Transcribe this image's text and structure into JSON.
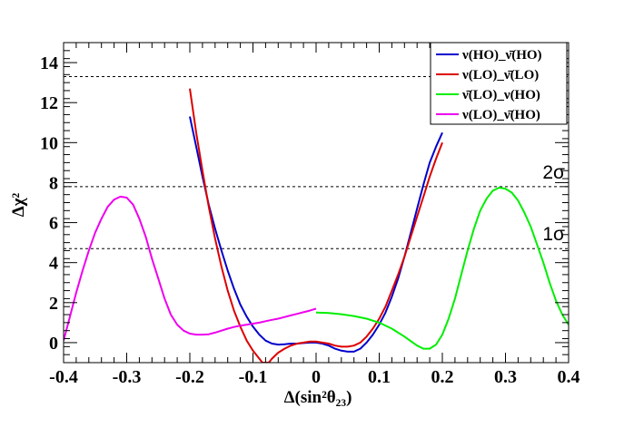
{
  "chart_data": {
    "type": "line",
    "xlabel": "Δ(sin²θ₂₃)",
    "ylabel": "Δχ²",
    "xlim": [
      -0.4,
      0.4
    ],
    "ylim": [
      -1.0,
      15.0
    ],
    "xticks": [
      "-0.4",
      "-0.3",
      "-0.2",
      "-0.1",
      "0",
      "0.1",
      "0.2",
      "0.3",
      "0.4"
    ],
    "yticks": [
      "0",
      "2",
      "4",
      "6",
      "8",
      "10",
      "12",
      "14"
    ],
    "xtick_values": [
      -0.4,
      -0.3,
      -0.2,
      -0.1,
      0,
      0.1,
      0.2,
      0.3,
      0.4
    ],
    "ytick_values": [
      0,
      2,
      4,
      6,
      8,
      10,
      12,
      14
    ],
    "reference_lines": [
      {
        "y": 13.3,
        "label": ""
      },
      {
        "y": 7.8,
        "label": "2σ"
      },
      {
        "y": 4.7,
        "label": "1σ"
      }
    ],
    "legend_position": "top-right",
    "series": [
      {
        "name": "ν(HO)_ν̄(HO)",
        "color": "#0000cc",
        "x": [
          -0.2,
          -0.19,
          -0.18,
          -0.17,
          -0.16,
          -0.15,
          -0.14,
          -0.13,
          -0.12,
          -0.11,
          -0.1,
          -0.09,
          -0.08,
          -0.07,
          -0.06,
          -0.05,
          -0.04,
          -0.03,
          -0.02,
          -0.01,
          0.0,
          0.01,
          0.02,
          0.03,
          0.04,
          0.05,
          0.06,
          0.07,
          0.08,
          0.09,
          0.1,
          0.11,
          0.12,
          0.13,
          0.14,
          0.15,
          0.16,
          0.17,
          0.18,
          0.19,
          0.2
        ],
        "y": [
          11.3,
          9.8,
          8.3,
          6.9,
          5.7,
          4.6,
          3.6,
          2.7,
          1.9,
          1.3,
          0.8,
          0.4,
          0.1,
          -0.05,
          -0.1,
          -0.08,
          -0.05,
          -0.05,
          -0.02,
          0.0,
          0.0,
          -0.05,
          -0.15,
          -0.3,
          -0.4,
          -0.45,
          -0.45,
          -0.3,
          0.0,
          0.4,
          0.9,
          1.5,
          2.3,
          3.2,
          4.3,
          5.5,
          6.7,
          7.9,
          9.0,
          9.8,
          10.5
        ]
      },
      {
        "name": "ν(LO)_ν̄(LO)",
        "color": "#dd0000",
        "x": [
          -0.2,
          -0.19,
          -0.18,
          -0.17,
          -0.16,
          -0.15,
          -0.14,
          -0.13,
          -0.12,
          -0.11,
          -0.1,
          -0.09,
          -0.085,
          -0.075,
          -0.07,
          -0.06,
          -0.05,
          -0.04,
          -0.03,
          -0.02,
          -0.01,
          0.0,
          0.01,
          0.02,
          0.03,
          0.04,
          0.05,
          0.06,
          0.07,
          0.08,
          0.09,
          0.1,
          0.11,
          0.12,
          0.13,
          0.14,
          0.15,
          0.16,
          0.17,
          0.18,
          0.19,
          0.2
        ],
        "y": [
          12.7,
          10.5,
          8.6,
          6.8,
          5.2,
          3.8,
          2.6,
          1.6,
          0.8,
          0.1,
          -0.4,
          -0.8,
          -1.0,
          -1.0,
          -0.8,
          -0.5,
          -0.3,
          -0.15,
          -0.05,
          0.0,
          0.05,
          0.05,
          0.0,
          -0.05,
          -0.15,
          -0.2,
          -0.2,
          -0.15,
          0.0,
          0.3,
          0.7,
          1.2,
          1.8,
          2.6,
          3.4,
          4.3,
          5.3,
          6.3,
          7.3,
          8.3,
          9.2,
          10.0
        ]
      },
      {
        "name": "ν̄(LO)_ν(HO)",
        "color": "#00ee00",
        "x": [
          0.0,
          0.02,
          0.04,
          0.06,
          0.08,
          0.1,
          0.12,
          0.14,
          0.16,
          0.17,
          0.18,
          0.19,
          0.2,
          0.21,
          0.22,
          0.23,
          0.24,
          0.25,
          0.26,
          0.27,
          0.28,
          0.29,
          0.3,
          0.31,
          0.32,
          0.33,
          0.34,
          0.35,
          0.36,
          0.37,
          0.38,
          0.39,
          0.4
        ],
        "y": [
          1.5,
          1.48,
          1.42,
          1.33,
          1.2,
          1.0,
          0.7,
          0.3,
          -0.15,
          -0.3,
          -0.3,
          -0.1,
          0.4,
          1.2,
          2.2,
          3.4,
          4.6,
          5.7,
          6.6,
          7.2,
          7.6,
          7.75,
          7.7,
          7.5,
          7.1,
          6.5,
          5.8,
          4.9,
          4.0,
          3.0,
          2.1,
          1.4,
          0.9
        ]
      },
      {
        "name": "ν(LO)_ν̄(HO)",
        "color": "#ee00ee",
        "x": [
          -0.4,
          -0.39,
          -0.38,
          -0.37,
          -0.36,
          -0.35,
          -0.34,
          -0.33,
          -0.32,
          -0.31,
          -0.3,
          -0.29,
          -0.28,
          -0.27,
          -0.26,
          -0.25,
          -0.24,
          -0.23,
          -0.22,
          -0.21,
          -0.2,
          -0.19,
          -0.18,
          -0.17,
          -0.16,
          -0.15,
          -0.14,
          -0.13,
          -0.12,
          -0.11,
          -0.1,
          -0.09,
          -0.08,
          -0.07,
          -0.06,
          -0.05,
          -0.04,
          -0.03,
          -0.02,
          -0.01,
          0.0
        ],
        "y": [
          0.1,
          1.3,
          2.5,
          3.6,
          4.6,
          5.5,
          6.2,
          6.8,
          7.15,
          7.3,
          7.25,
          6.9,
          6.2,
          5.3,
          4.2,
          3.2,
          2.2,
          1.4,
          0.9,
          0.6,
          0.45,
          0.4,
          0.4,
          0.42,
          0.5,
          0.6,
          0.7,
          0.78,
          0.85,
          0.9,
          0.95,
          1.0,
          1.07,
          1.14,
          1.2,
          1.28,
          1.36,
          1.44,
          1.52,
          1.6,
          1.7
        ]
      }
    ]
  }
}
